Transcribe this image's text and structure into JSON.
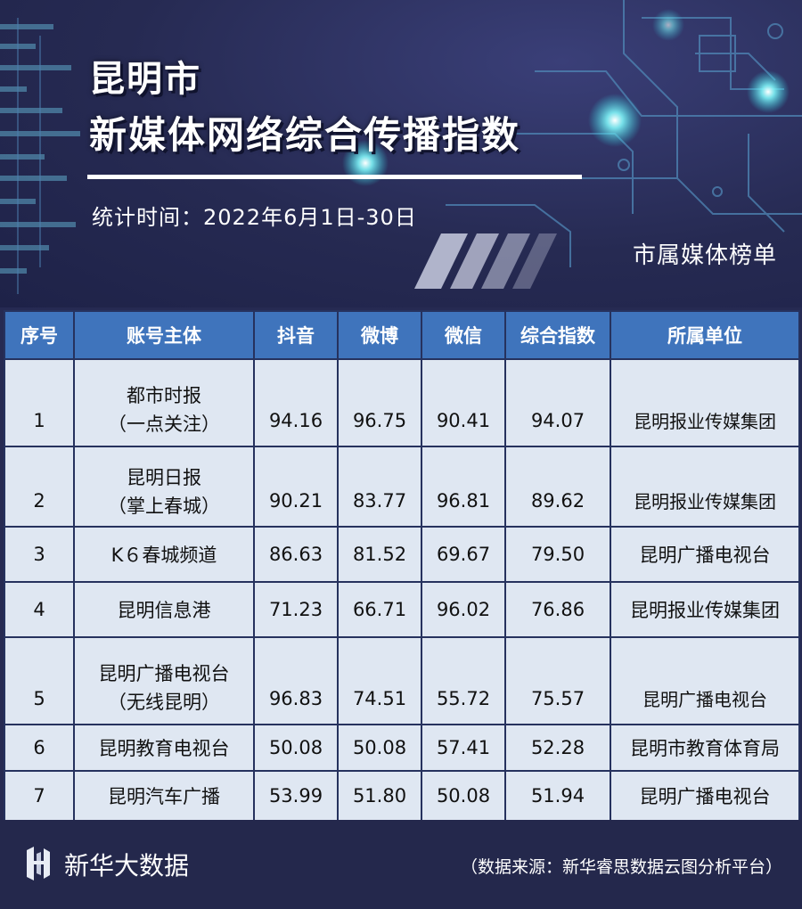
{
  "header": {
    "title_line1": "昆明市",
    "title_line2": "新媒体网络综合传播指数",
    "period": "统计时间：2022年6月1日-30日",
    "list_label": "市属媒体榜单"
  },
  "table": {
    "columns": [
      "序号",
      "账号主体",
      "抖音",
      "微博",
      "微信",
      "综合指数",
      "所属单位"
    ],
    "rows": [
      {
        "rank": "1",
        "name": "都市时报",
        "sub": "（一点关注）",
        "douyin": "94.16",
        "weibo": "96.75",
        "weixin": "90.41",
        "index": "94.07",
        "unit": "昆明报业传媒集团"
      },
      {
        "rank": "2",
        "name": "昆明日报",
        "sub": "（掌上春城）",
        "douyin": "90.21",
        "weibo": "83.77",
        "weixin": "96.81",
        "index": "89.62",
        "unit": "昆明报业传媒集团"
      },
      {
        "rank": "3",
        "name": "K６春城频道",
        "sub": "",
        "douyin": "86.63",
        "weibo": "81.52",
        "weixin": "69.67",
        "index": "79.50",
        "unit": "昆明广播电视台"
      },
      {
        "rank": "4",
        "name": "昆明信息港",
        "sub": "",
        "douyin": "71.23",
        "weibo": "66.71",
        "weixin": "96.02",
        "index": "76.86",
        "unit": "昆明报业传媒集团"
      },
      {
        "rank": "5",
        "name": "昆明广播电视台",
        "sub": "（无线昆明）",
        "douyin": "96.83",
        "weibo": "74.51",
        "weixin": "55.72",
        "index": "75.57",
        "unit": "昆明广播电视台"
      },
      {
        "rank": "6",
        "name": "昆明教育电视台",
        "sub": "",
        "douyin": "50.08",
        "weibo": "50.08",
        "weixin": "57.41",
        "index": "52.28",
        "unit": "昆明市教育体育局"
      },
      {
        "rank": "7",
        "name": "昆明汽车广播",
        "sub": "",
        "douyin": "53.99",
        "weibo": "51.80",
        "weixin": "50.08",
        "index": "51.94",
        "unit": "昆明广播电视台"
      }
    ]
  },
  "footer": {
    "brand": "新华大数据",
    "source": "（数据来源：新华睿思数据云图分析平台）"
  },
  "colors": {
    "background": "#262a52",
    "table_header": "#3f74bc",
    "table_cell": "#dfe7f2",
    "border": "#26325e",
    "accent_glow": "#5ee8f0"
  }
}
